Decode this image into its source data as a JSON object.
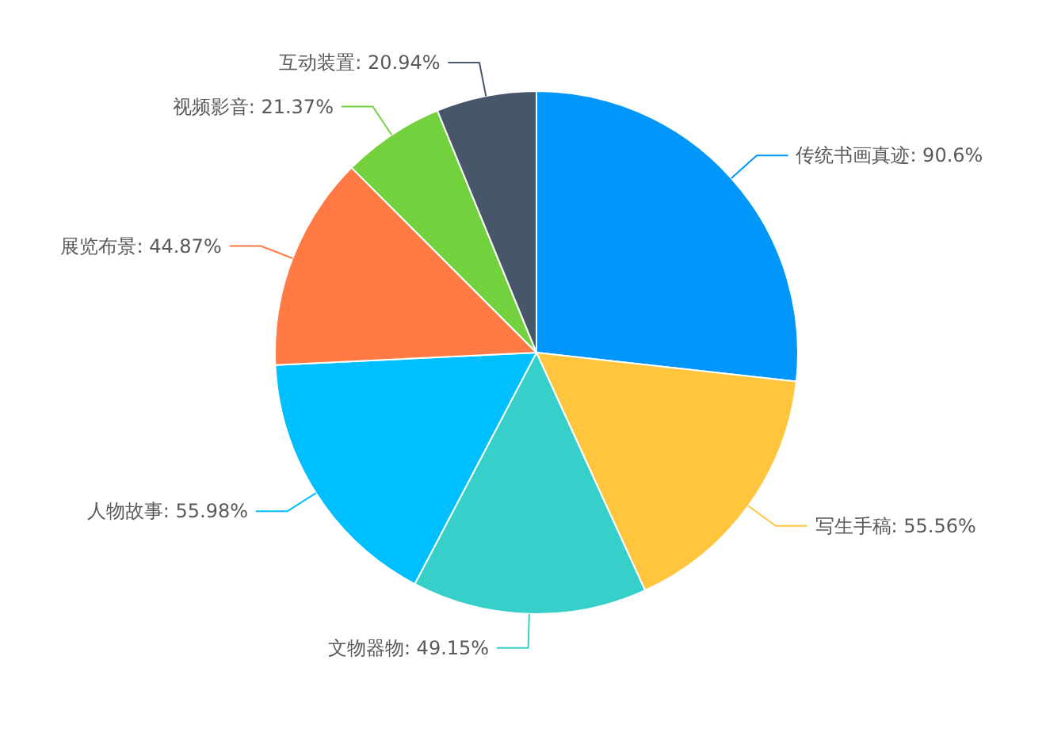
{
  "chart_data": {
    "type": "pie",
    "categories": [
      "传统书画真迹",
      "写生手稿",
      "文物器物",
      "人物故事",
      "展览布景",
      "视频影音",
      "互动装置"
    ],
    "values": [
      90.6,
      55.56,
      49.15,
      55.98,
      44.87,
      21.37,
      20.94
    ],
    "colors": [
      "#0096fa",
      "#ffc53d",
      "#36cfc9",
      "#00bfff",
      "#ff7a45",
      "#73d13d",
      "#475669"
    ],
    "value_labels": [
      "90.6%",
      "55.56%",
      "49.15%",
      "55.98%",
      "44.87%",
      "21.37%",
      "20.94%"
    ]
  }
}
